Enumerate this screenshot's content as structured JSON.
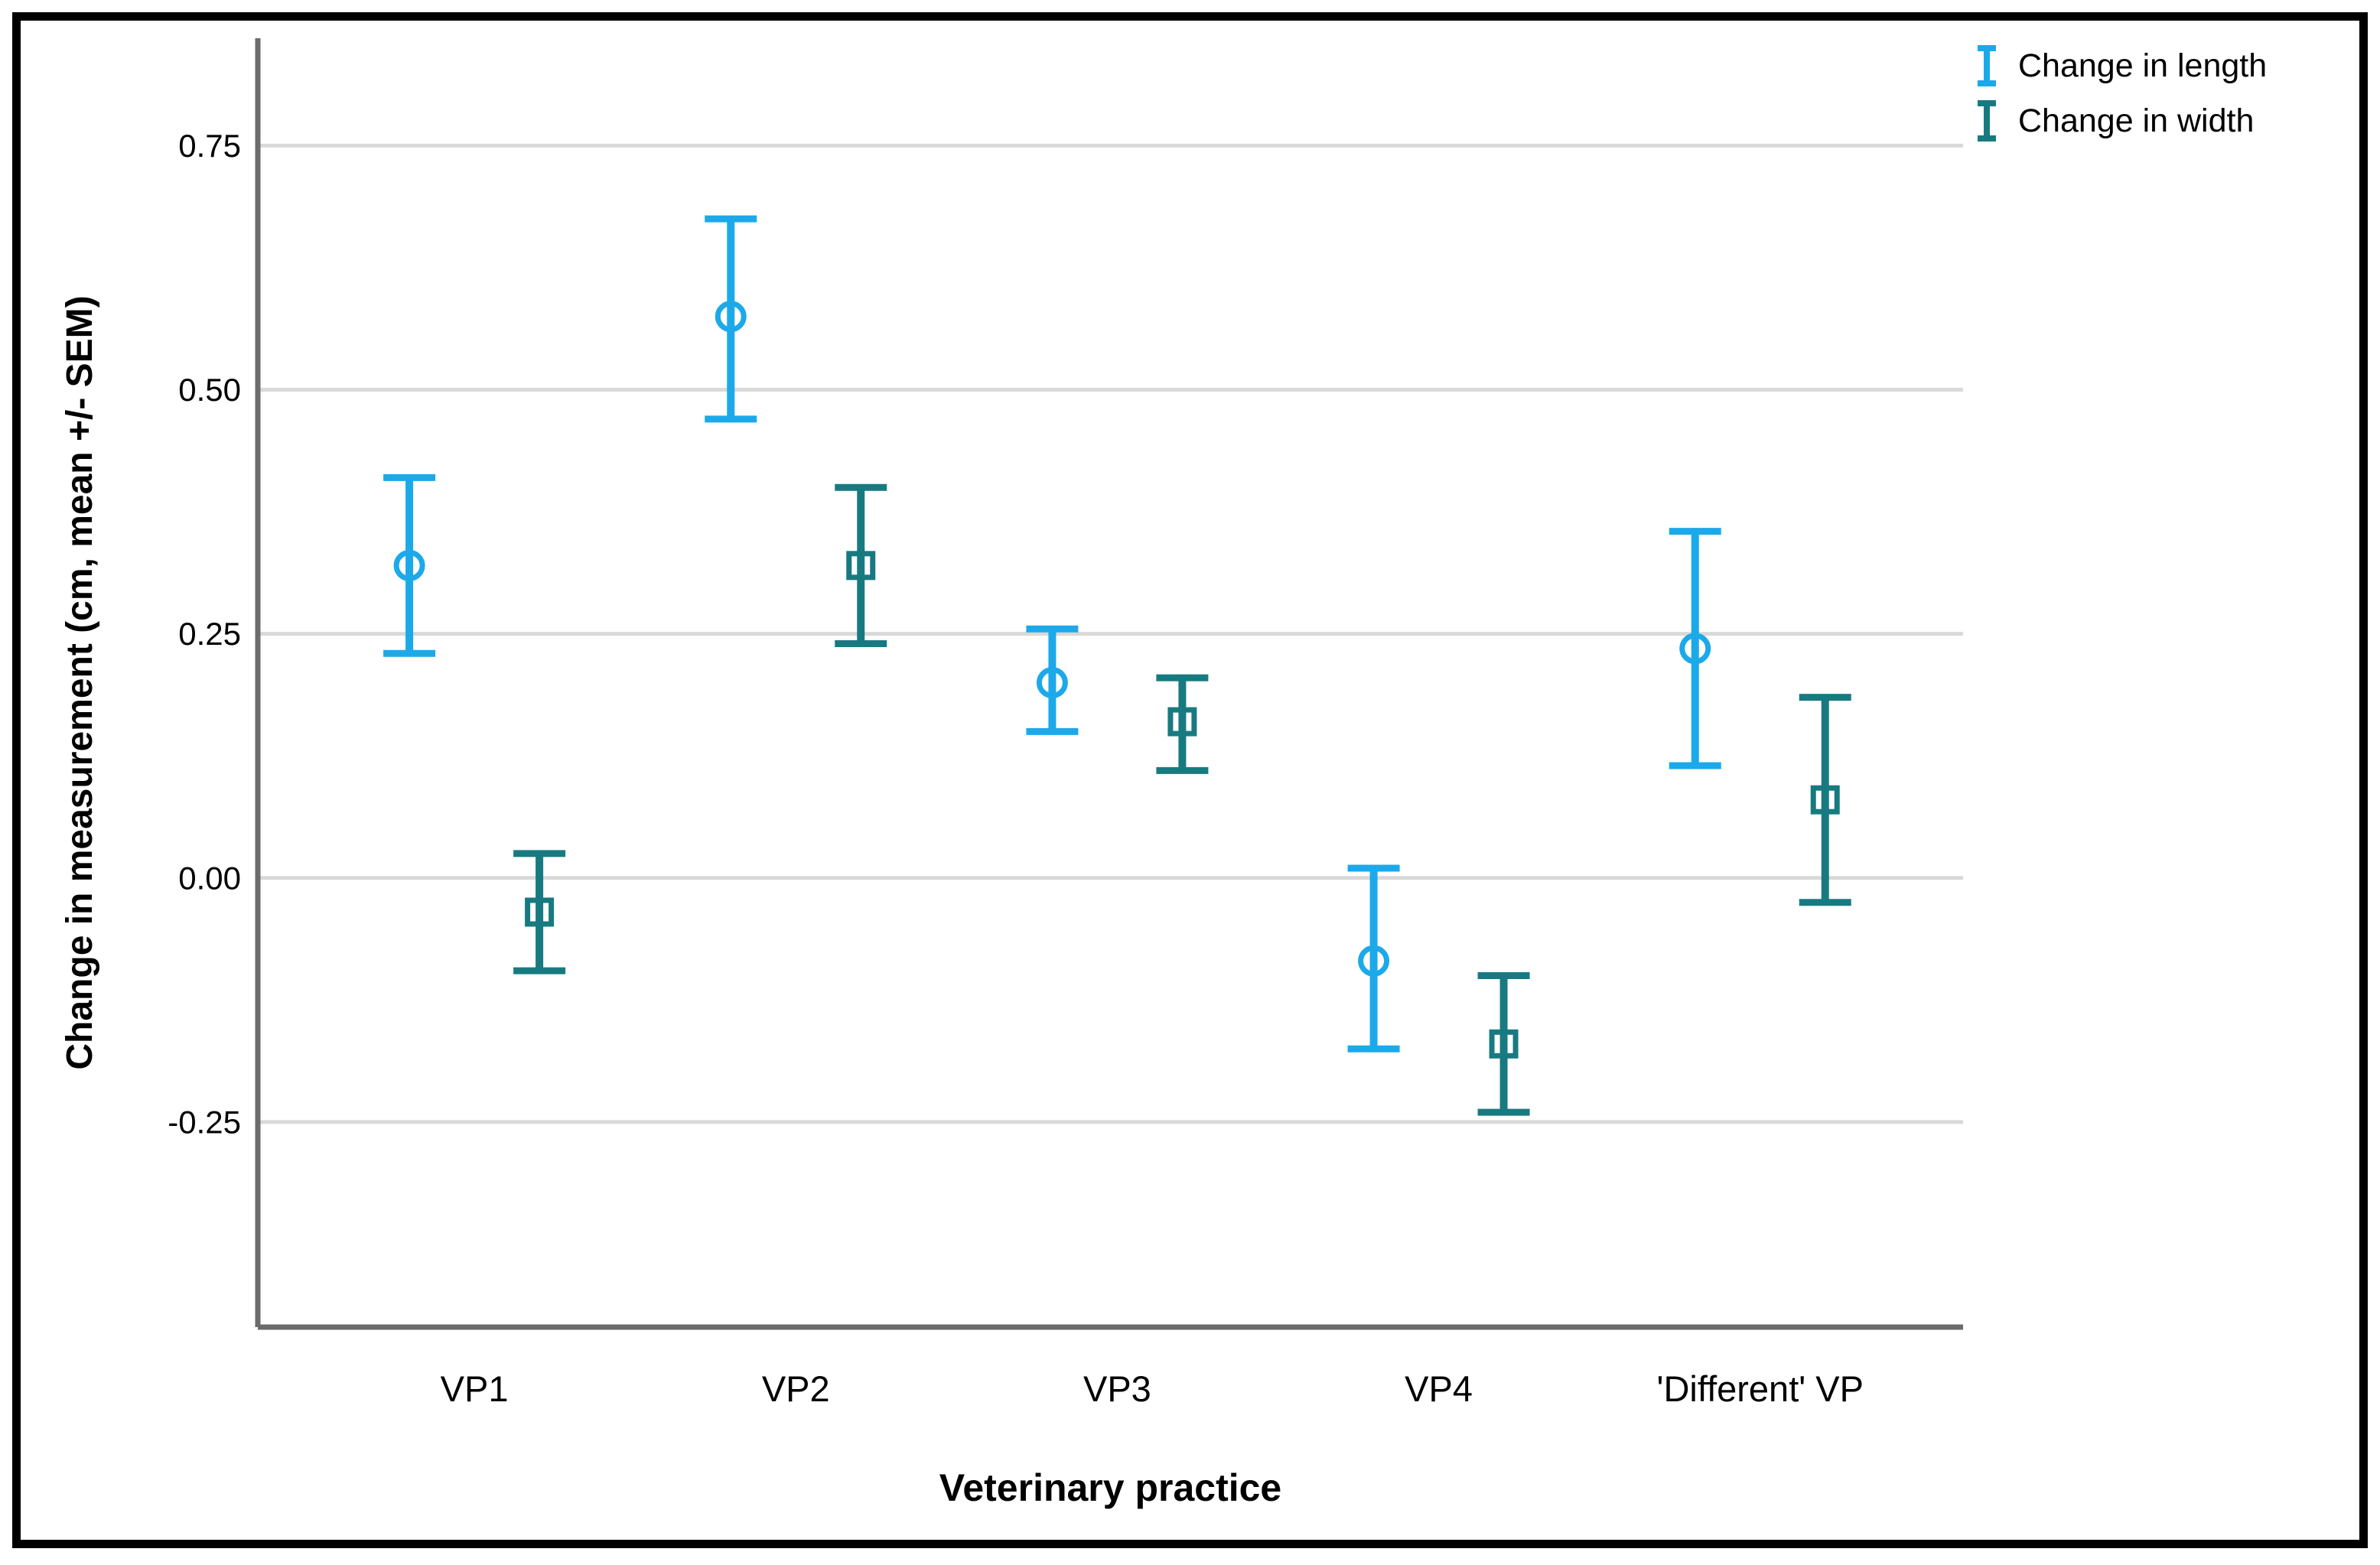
{
  "chart_data": {
    "type": "errorbar",
    "title": "",
    "xlabel": "Veterinary practice",
    "ylabel": "Change in measurement (cm, mean +/- SEM)",
    "categories": [
      "VP1",
      "VP2",
      "VP3",
      "VP4",
      "'Different' VP"
    ],
    "ylim": [
      -0.46,
      0.86
    ],
    "yticks": [
      0.75,
      0.5,
      0.25,
      0.0,
      -0.25
    ],
    "ytick_labels": [
      "0.75",
      "0.50",
      "0.25",
      "0.00",
      "-0.25"
    ],
    "grid": "horizontal-only",
    "legend_position": "top-right-outside-plot",
    "series": [
      {
        "name": "Change in length",
        "marker": "circle",
        "color": "#1CA9EA",
        "means": [
          0.32,
          0.575,
          0.2,
          -0.085,
          0.235
        ],
        "upper": [
          0.41,
          0.675,
          0.255,
          0.01,
          0.355
        ],
        "lower": [
          0.23,
          0.47,
          0.15,
          -0.175,
          0.115
        ]
      },
      {
        "name": "Change in width",
        "marker": "square",
        "color": "#187A81",
        "means": [
          -0.035,
          0.32,
          0.16,
          -0.17,
          0.08
        ],
        "upper": [
          0.025,
          0.4,
          0.205,
          -0.1,
          0.185
        ],
        "lower": [
          -0.095,
          0.24,
          0.11,
          -0.24,
          -0.025
        ]
      }
    ]
  },
  "colors": {
    "background": "#ffffff",
    "frame_border": "#000000",
    "axis_line": "#6b6b6b",
    "gridline": "#d9d9d9",
    "text": "#000000"
  }
}
